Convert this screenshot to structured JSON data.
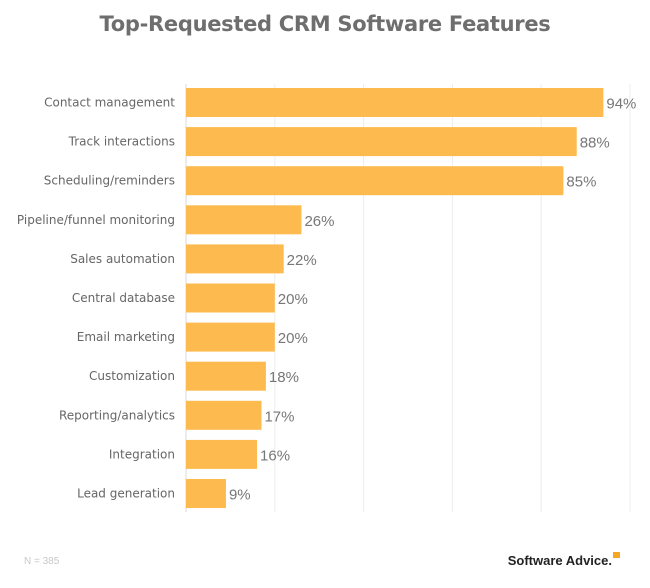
{
  "chart_data": {
    "type": "bar",
    "orientation": "horizontal",
    "title": "Top-Requested CRM Software Features",
    "categories": [
      "Contact management",
      "Track interactions",
      "Scheduling/reminders",
      "Pipeline/funnel monitoring",
      "Sales automation",
      "Central database",
      "Email marketing",
      "Customization",
      "Reporting/analytics",
      "Integration",
      "Lead generation"
    ],
    "values": [
      94,
      88,
      85,
      26,
      22,
      20,
      20,
      18,
      17,
      16,
      9
    ],
    "labels": [
      "94%",
      "88%",
      "85%",
      "26%",
      "22%",
      "20%",
      "20%",
      "18%",
      "17%",
      "16%",
      "9%"
    ],
    "xlim": [
      0,
      100
    ],
    "grid_step": 20,
    "grid": true,
    "bar_color": "#FDBB4F",
    "note": "N = 385"
  },
  "brand": {
    "name": "Software Advice.",
    "accent": "#F5A623"
  }
}
